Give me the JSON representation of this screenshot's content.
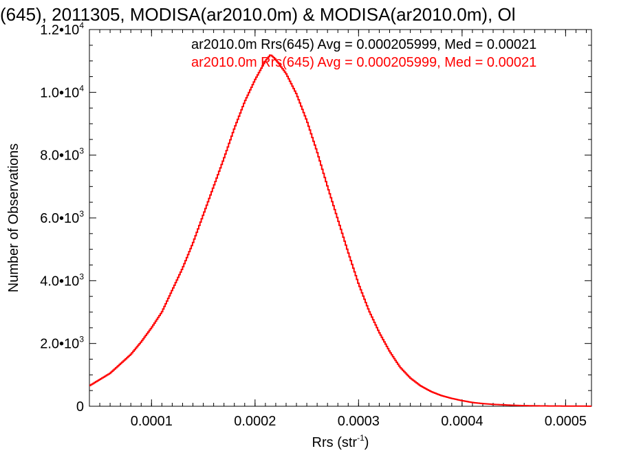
{
  "chart_data": {
    "type": "line",
    "title": "(645), 2011305, MODISA(ar2010.0m) & MODISA(ar2010.0m), Ol",
    "xlabel": "Rrs (str",
    "xlabel_sup": "-1",
    "xlabel_end": ")",
    "ylabel": "Number of Observations",
    "xlim": [
      4e-05,
      0.000525
    ],
    "ylim": [
      0,
      12000
    ],
    "x_ticks": [
      {
        "value": 0.0001,
        "label": "0.0001"
      },
      {
        "value": 0.0002,
        "label": "0.0002"
      },
      {
        "value": 0.0003,
        "label": "0.0003"
      },
      {
        "value": 0.0004,
        "label": "0.0004"
      },
      {
        "value": 0.0005,
        "label": "0.0005"
      }
    ],
    "y_ticks": [
      {
        "value": 0,
        "label": "0",
        "sup": ""
      },
      {
        "value": 2000,
        "label": "2.0•10",
        "sup": "3"
      },
      {
        "value": 4000,
        "label": "4.0•10",
        "sup": "3"
      },
      {
        "value": 6000,
        "label": "6.0•10",
        "sup": "3"
      },
      {
        "value": 8000,
        "label": "8.0•10",
        "sup": "3"
      },
      {
        "value": 10000,
        "label": "1.0•10",
        "sup": "4"
      },
      {
        "value": 12000,
        "label": "1.2•10",
        "sup": "4"
      }
    ],
    "legend": [
      {
        "text": "ar2010.0m Rrs(645) Avg = 0.000205999, Med = 0.00021",
        "color": "#000000"
      },
      {
        "text": "ar2010.0m Rrs(645) Avg = 0.000205999, Med = 0.00021",
        "color": "#ff0000"
      }
    ],
    "series": [
      {
        "color": "#ff0000",
        "x": [
          4e-05,
          5e-05,
          6e-05,
          7e-05,
          8e-05,
          9e-05,
          0.0001,
          0.00011,
          0.00012,
          0.00013,
          0.00014,
          0.00015,
          0.00016,
          0.00017,
          0.00018,
          0.00019,
          0.0002,
          0.00021,
          0.000215,
          0.00022,
          0.00023,
          0.00024,
          0.00025,
          0.00026,
          0.00027,
          0.00028,
          0.00029,
          0.0003,
          0.00031,
          0.00032,
          0.00033,
          0.00034,
          0.00035,
          0.00036,
          0.00037,
          0.00038,
          0.00039,
          0.0004,
          0.00041,
          0.00042,
          0.00043,
          0.00044,
          0.00045,
          0.00046,
          0.00047,
          0.00048,
          0.00049,
          0.0005,
          0.00051,
          0.00052,
          0.000525
        ],
        "y": [
          650,
          850,
          1050,
          1350,
          1650,
          2050,
          2500,
          3000,
          3700,
          4400,
          5200,
          6100,
          7000,
          7900,
          8850,
          9700,
          10400,
          11000,
          11200,
          11050,
          10600,
          9950,
          9100,
          8100,
          7000,
          5950,
          4900,
          3900,
          3050,
          2350,
          1750,
          1250,
          900,
          650,
          470,
          340,
          250,
          180,
          120,
          85,
          60,
          45,
          30,
          20,
          14,
          10,
          8,
          6,
          5,
          4,
          4
        ]
      }
    ]
  }
}
